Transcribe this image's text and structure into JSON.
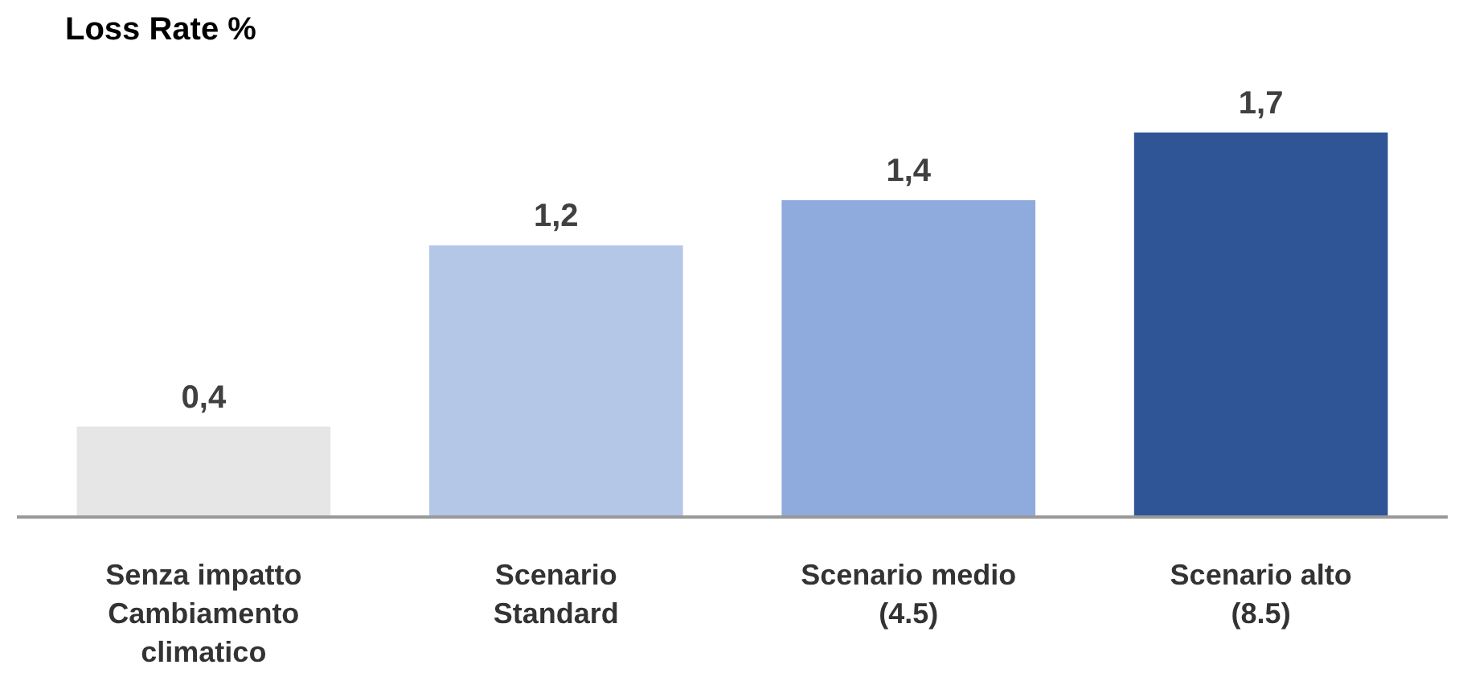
{
  "chart_data": {
    "type": "bar",
    "title": "Loss Rate %",
    "categories": [
      "Senza impatto Cambiamento climatico",
      "Scenario Standard",
      "Scenario medio (4.5)",
      "Scenario alto (8.5)"
    ],
    "values": [
      0.4,
      1.2,
      1.4,
      1.7
    ],
    "value_labels": [
      "0,4",
      "1,2",
      "1,4",
      "1,7"
    ],
    "colors": [
      "#e6e6e6",
      "#b4c7e7",
      "#8faadc",
      "#2f5597"
    ],
    "grid": false
  }
}
